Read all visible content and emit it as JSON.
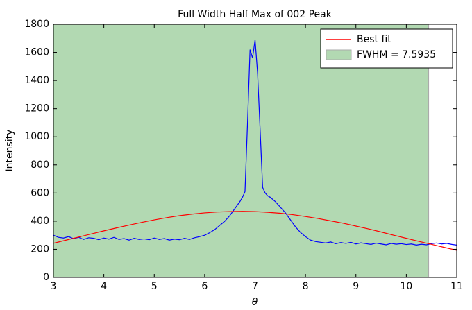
{
  "chart_data": {
    "type": "line",
    "title": "Full Width Half Max of 002 Peak",
    "xlabel": "θ",
    "ylabel": "Intensity",
    "xlim": [
      3,
      11
    ],
    "xticks": [
      3,
      4,
      5,
      6,
      7,
      8,
      9,
      10,
      11
    ],
    "ylim": [
      0,
      1800
    ],
    "yticks": [
      0,
      200,
      400,
      600,
      800,
      1000,
      1200,
      1400,
      1600,
      1800
    ],
    "legend": "upper right",
    "series": [
      {
        "type": "span",
        "name": "FWHM = 7.5935",
        "color": "#b2d9b2",
        "edge": "#aaaaaa",
        "xrange": [
          2.85,
          10.44
        ]
      },
      {
        "type": "line",
        "color": "#0000ff",
        "x": [
          3.0,
          3.1,
          3.2,
          3.3,
          3.4,
          3.5,
          3.6,
          3.7,
          3.8,
          3.9,
          4.0,
          4.1,
          4.2,
          4.3,
          4.4,
          4.5,
          4.6,
          4.7,
          4.8,
          4.9,
          5.0,
          5.1,
          5.2,
          5.3,
          5.4,
          5.5,
          5.6,
          5.7,
          5.8,
          5.9,
          6.0,
          6.1,
          6.2,
          6.3,
          6.4,
          6.5,
          6.6,
          6.7,
          6.75,
          6.8,
          6.85,
          6.9,
          6.95,
          7.0,
          7.05,
          7.1,
          7.15,
          7.2,
          7.25,
          7.3,
          7.4,
          7.5,
          7.6,
          7.7,
          7.8,
          7.9,
          8.0,
          8.1,
          8.2,
          8.3,
          8.4,
          8.5,
          8.6,
          8.7,
          8.8,
          8.9,
          9.0,
          9.1,
          9.2,
          9.3,
          9.4,
          9.5,
          9.6,
          9.7,
          9.8,
          9.9,
          10.0,
          10.1,
          10.2,
          10.3,
          10.4,
          10.5,
          10.6,
          10.7,
          10.8,
          10.9,
          11.0
        ],
        "values": [
          300,
          285,
          280,
          290,
          275,
          285,
          270,
          282,
          278,
          268,
          280,
          272,
          285,
          270,
          276,
          265,
          278,
          270,
          274,
          268,
          280,
          270,
          276,
          265,
          272,
          268,
          278,
          270,
          282,
          290,
          300,
          318,
          340,
          370,
          400,
          440,
          490,
          540,
          570,
          610,
          1100,
          1620,
          1560,
          1690,
          1450,
          1050,
          640,
          600,
          580,
          570,
          540,
          500,
          460,
          410,
          360,
          320,
          290,
          265,
          255,
          250,
          245,
          252,
          240,
          248,
          242,
          250,
          238,
          246,
          240,
          235,
          244,
          238,
          232,
          242,
          236,
          240,
          234,
          238,
          230,
          236,
          232,
          240,
          245,
          238,
          242,
          235,
          230
        ]
      },
      {
        "type": "line",
        "name": "Best fit",
        "color": "#ff0000",
        "x": [
          3,
          3.25,
          3.5,
          3.75,
          4,
          4.25,
          4.5,
          4.75,
          5,
          5.25,
          5.5,
          5.75,
          6,
          6.25,
          6.5,
          6.75,
          7,
          7.25,
          7.5,
          7.75,
          8,
          8.25,
          8.5,
          8.75,
          9,
          9.25,
          9.5,
          9.75,
          10,
          10.25,
          10.5,
          10.75,
          11
        ],
        "values": [
          243,
          265,
          287,
          309,
          331,
          352,
          372,
          391,
          409,
          425,
          439,
          450,
          459,
          465,
          468,
          470,
          468,
          463,
          456,
          446,
          433,
          419,
          402,
          385,
          365,
          345,
          323,
          300,
          278,
          256,
          235,
          214,
          193
        ]
      }
    ]
  }
}
